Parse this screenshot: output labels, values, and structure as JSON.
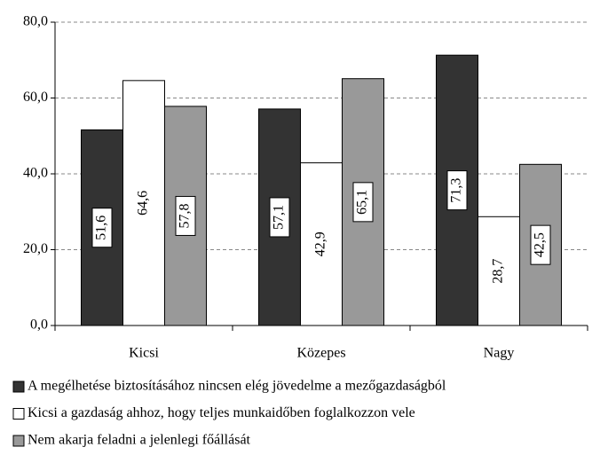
{
  "chart_data": {
    "type": "bar",
    "categories": [
      "Kicsi",
      "Közepes",
      "Nagy"
    ],
    "series": [
      {
        "name": "A megélhetése biztosításához nincsen elég jövedelme a mezőgazdaságból",
        "color": "#333333",
        "values": [
          51.6,
          57.1,
          71.3
        ],
        "value_labels": [
          "51,6",
          "57,1",
          "71,3"
        ]
      },
      {
        "name": "Kicsi a gazdaság ahhoz, hogy teljes munkaidőben foglalkozzon vele",
        "color": "#ffffff",
        "values": [
          64.6,
          42.9,
          28.7
        ],
        "value_labels": [
          "64,6",
          "42,9",
          "28,7"
        ]
      },
      {
        "name": "Nem akarja feladni a jelenlegi főállását",
        "color": "#999999",
        "values": [
          57.8,
          65.1,
          42.5
        ],
        "value_labels": [
          "57,8",
          "65,1",
          "42,5"
        ]
      }
    ],
    "ylim": [
      0,
      80
    ],
    "yticks": [
      {
        "value": 0,
        "label": "0,0"
      },
      {
        "value": 20,
        "label": "20,0"
      },
      {
        "value": 40,
        "label": "40,0"
      },
      {
        "value": 60,
        "label": "60,0"
      },
      {
        "value": 80,
        "label": "80,0"
      }
    ],
    "grid": true
  }
}
